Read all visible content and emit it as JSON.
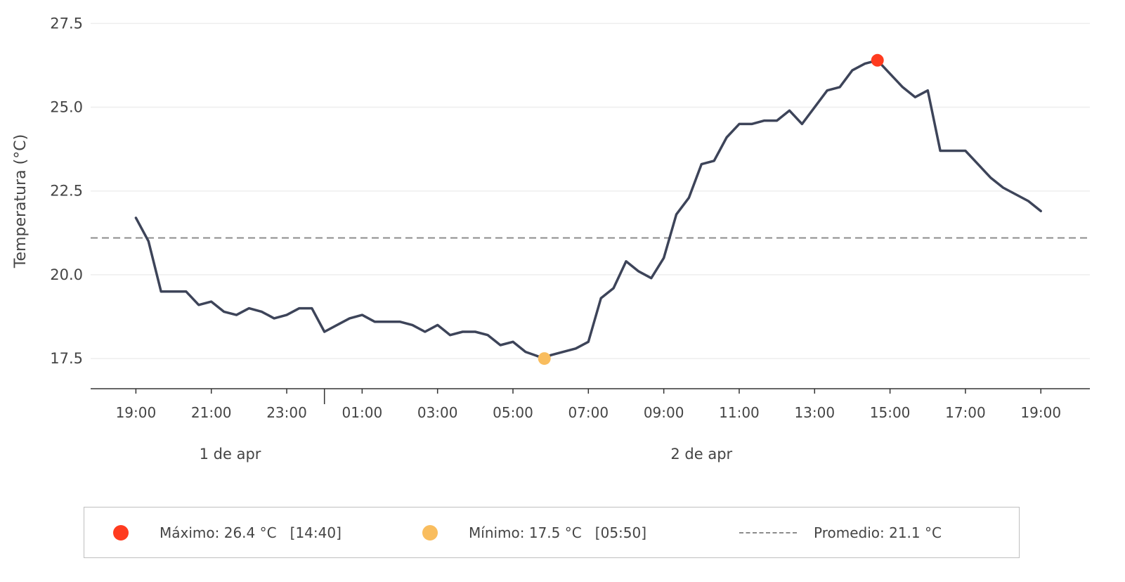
{
  "chart_data": {
    "type": "line",
    "ylabel": "Temperatura (°C)",
    "ylim": [
      16.6,
      28.2
    ],
    "yticks": [
      17.5,
      20.0,
      22.5,
      25.0,
      27.5
    ],
    "ytick_labels": [
      "17.5",
      "20.0",
      "22.5",
      "25.0",
      "27.5"
    ],
    "x_range_hours": [
      -1.2,
      25.3
    ],
    "xtick_labels": [
      "19:00",
      "21:00",
      "23:00",
      "01:00",
      "03:00",
      "05:00",
      "07:00",
      "09:00",
      "11:00",
      "13:00",
      "15:00",
      "17:00",
      "19:00"
    ],
    "day_labels": [
      "1 de apr",
      "2 de apr"
    ],
    "grid": "horizontal",
    "colors": {
      "line": "#3d4459",
      "max": "#ff3b1f",
      "min": "#f9bd5e",
      "mean": "#8c8c8c"
    },
    "series": [
      {
        "x": [
          "2023-04-01T19:00",
          "2023-04-01T19:20",
          "2023-04-01T19:40",
          "2023-04-01T20:00",
          "2023-04-01T20:20",
          "2023-04-01T20:40",
          "2023-04-01T21:00",
          "2023-04-01T21:20",
          "2023-04-01T21:40",
          "2023-04-01T22:00",
          "2023-04-01T22:20",
          "2023-04-01T22:40",
          "2023-04-01T23:00",
          "2023-04-01T23:20",
          "2023-04-01T23:40",
          "2023-04-02T00:00",
          "2023-04-02T00:20",
          "2023-04-02T00:40",
          "2023-04-02T01:00",
          "2023-04-02T01:20",
          "2023-04-02T01:40",
          "2023-04-02T02:00",
          "2023-04-02T02:20",
          "2023-04-02T02:40",
          "2023-04-02T03:00",
          "2023-04-02T03:20",
          "2023-04-02T03:40",
          "2023-04-02T04:00",
          "2023-04-02T04:20",
          "2023-04-02T04:40",
          "2023-04-02T05:00",
          "2023-04-02T05:20",
          "2023-04-02T05:50",
          "2023-04-02T06:00",
          "2023-04-02T06:20",
          "2023-04-02T06:40",
          "2023-04-02T07:00",
          "2023-04-02T07:20",
          "2023-04-02T07:40",
          "2023-04-02T08:00",
          "2023-04-02T08:20",
          "2023-04-02T08:40",
          "2023-04-02T09:00",
          "2023-04-02T09:20",
          "2023-04-02T09:40",
          "2023-04-02T10:00",
          "2023-04-02T10:20",
          "2023-04-02T10:40",
          "2023-04-02T11:00",
          "2023-04-02T11:20",
          "2023-04-02T11:40",
          "2023-04-02T12:00",
          "2023-04-02T12:20",
          "2023-04-02T12:40",
          "2023-04-02T13:00",
          "2023-04-02T13:20",
          "2023-04-02T13:40",
          "2023-04-02T14:00",
          "2023-04-02T14:20",
          "2023-04-02T14:40",
          "2023-04-02T15:00",
          "2023-04-02T15:20",
          "2023-04-02T15:40",
          "2023-04-02T16:00",
          "2023-04-02T16:20",
          "2023-04-02T16:40",
          "2023-04-02T17:00",
          "2023-04-02T17:20",
          "2023-04-02T17:40",
          "2023-04-02T18:00",
          "2023-04-02T18:20",
          "2023-04-02T18:40",
          "2023-04-02T19:00"
        ],
        "y": [
          21.7,
          21.0,
          19.5,
          19.5,
          19.5,
          19.1,
          19.2,
          18.9,
          18.8,
          19.0,
          18.9,
          18.7,
          18.8,
          19.0,
          19.0,
          18.3,
          18.5,
          18.7,
          18.8,
          18.6,
          18.6,
          18.6,
          18.5,
          18.3,
          18.5,
          18.2,
          18.3,
          18.3,
          18.2,
          17.9,
          18.0,
          17.7,
          17.5,
          17.6,
          17.7,
          17.8,
          18.0,
          19.3,
          19.6,
          20.4,
          20.1,
          19.9,
          20.5,
          21.8,
          22.3,
          23.3,
          23.4,
          24.1,
          24.5,
          24.5,
          24.6,
          24.6,
          24.9,
          24.5,
          25.0,
          25.5,
          25.6,
          26.1,
          26.3,
          26.4,
          26.0,
          25.6,
          25.3,
          25.5,
          23.7,
          23.7,
          23.7,
          23.3,
          22.9,
          22.6,
          22.4,
          22.2,
          21.9
        ]
      }
    ],
    "max_point": {
      "x": "2023-04-02T14:40",
      "y": 26.4
    },
    "min_point": {
      "x": "2023-04-02T05:50",
      "y": 17.5
    },
    "mean": 21.1,
    "legend": {
      "placement": "bottom",
      "entries": [
        {
          "marker": "dot",
          "color": "#ff3b1f",
          "text": "Máximo: 26.4 °C   [14:40]"
        },
        {
          "marker": "dot",
          "color": "#f9bd5e",
          "text": "Mínimo: 17.5 °C   [05:50]"
        },
        {
          "marker": "dash",
          "color": "#8c8c8c",
          "text": "Promedio: 21.1 °C"
        }
      ]
    }
  }
}
